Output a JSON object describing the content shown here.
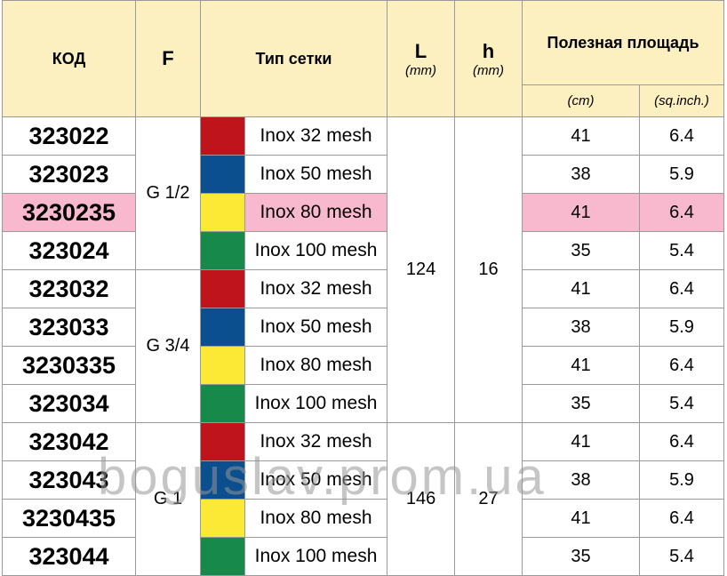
{
  "header": {
    "code": "КОД",
    "f": "F",
    "mesh_type": "Тип сетки",
    "l_label": "L",
    "l_unit": "(mm)",
    "h_label": "h",
    "h_unit": "(mm)",
    "area_label": "Полезная площадь",
    "area_unit_cm": "(cm)",
    "area_unit_in": "(sq.inch.)"
  },
  "groups": [
    {
      "f": "G 1/2",
      "L": "124",
      "h": "16"
    },
    {
      "f": "G 3/4"
    },
    {
      "f": "G 1",
      "L": "146",
      "h": "27"
    }
  ],
  "rows": [
    {
      "code": "323022",
      "color": "#c0141c",
      "mesh": "Inox 32 mesh",
      "cm": "41",
      "in": "6.4"
    },
    {
      "code": "323023",
      "color": "#0b4f8f",
      "mesh": "Inox 50 mesh",
      "cm": "38",
      "in": "5.9"
    },
    {
      "code": "3230235",
      "color": "#fbe936",
      "mesh": "Inox 80 mesh",
      "cm": "41",
      "in": "6.4"
    },
    {
      "code": "323024",
      "color": "#17894a",
      "mesh": "Inox 100 mesh",
      "cm": "35",
      "in": "5.4"
    },
    {
      "code": "323032",
      "color": "#c0141c",
      "mesh": "Inox 32 mesh",
      "cm": "41",
      "in": "6.4"
    },
    {
      "code": "323033",
      "color": "#0b4f8f",
      "mesh": "Inox 50 mesh",
      "cm": "38",
      "in": "5.9"
    },
    {
      "code": "3230335",
      "color": "#fbe936",
      "mesh": "Inox 80 mesh",
      "cm": "41",
      "in": "6.4"
    },
    {
      "code": "323034",
      "color": "#17894a",
      "mesh": "Inox 100 mesh",
      "cm": "35",
      "in": "5.4"
    },
    {
      "code": "323042",
      "color": "#c0141c",
      "mesh": "Inox 32 mesh",
      "cm": "41",
      "in": "6.4"
    },
    {
      "code": "323043",
      "color": "#0b4f8f",
      "mesh": "Inox 50 mesh",
      "cm": "38",
      "in": "5.9"
    },
    {
      "code": "3230435",
      "color": "#fbe936",
      "mesh": "Inox 80 mesh",
      "cm": "41",
      "in": "6.4"
    },
    {
      "code": "323044",
      "color": "#17894a",
      "mesh": "Inox 100 mesh",
      "cm": "35",
      "in": "5.4"
    }
  ],
  "highlight_color": "#f8b9cf",
  "watermark": "boguslav.prom.ua"
}
